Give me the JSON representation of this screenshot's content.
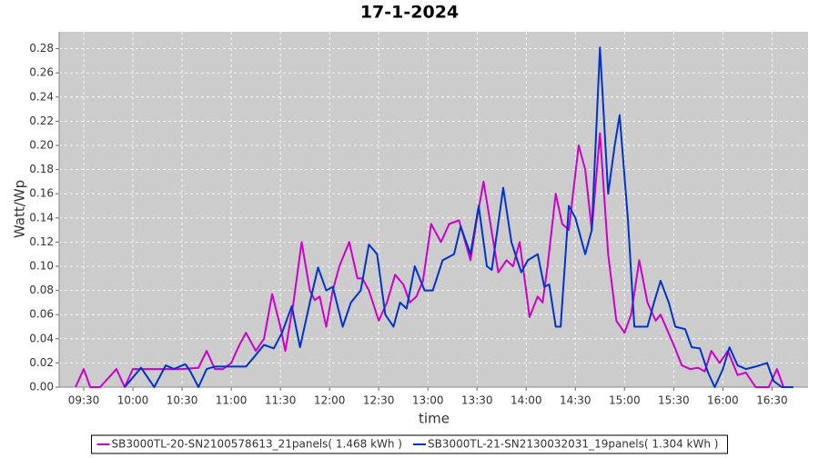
{
  "chart_data": {
    "type": "line",
    "title": "17-1-2024",
    "x_label": "time",
    "y_label": "Watt/Wp",
    "grid": true,
    "legend": "bottom",
    "xlim": [
      "09:15",
      "16:52"
    ],
    "xticks": [
      "09:30",
      "10:00",
      "10:30",
      "11:00",
      "11:30",
      "12:00",
      "12:30",
      "13:00",
      "13:30",
      "14:00",
      "14:30",
      "15:00",
      "15:30",
      "16:00",
      "16:30"
    ],
    "ylim": [
      0,
      0.294
    ],
    "yticks": [
      {
        "value": 0,
        "label": "0.00"
      },
      {
        "value": 0.02,
        "label": "0.02"
      },
      {
        "value": 0.04,
        "label": "0.04"
      },
      {
        "value": 0.06,
        "label": "0.06"
      },
      {
        "value": 0.08,
        "label": "0.08"
      },
      {
        "value": 0.1,
        "label": "0.10"
      },
      {
        "value": 0.12,
        "label": "0.12"
      },
      {
        "value": 0.14,
        "label": "0.14"
      },
      {
        "value": 0.16,
        "label": "0.16"
      },
      {
        "value": 0.18,
        "label": "0.18"
      },
      {
        "value": 0.2,
        "label": "0.20"
      },
      {
        "value": 0.22,
        "label": "0.22"
      },
      {
        "value": 0.24,
        "label": "0.24"
      },
      {
        "value": 0.26,
        "label": "0.26"
      },
      {
        "value": 0.28,
        "label": "0.28"
      }
    ],
    "series": [
      {
        "name": "SB3000TL-20-SN2100578613_21panels( 1.468 kWh )",
        "color": "#cc00cc",
        "x": [
          "09:25",
          "09:30",
          "09:34",
          "09:40",
          "09:50",
          "09:55",
          "10:00",
          "10:05",
          "10:10",
          "10:20",
          "10:30",
          "10:40",
          "10:45",
          "10:50",
          "10:55",
          "11:00",
          "11:05",
          "11:09",
          "11:15",
          "11:20",
          "11:25",
          "11:30",
          "11:33",
          "11:38",
          "11:43",
          "11:48",
          "11:51",
          "11:54",
          "11:58",
          "12:02",
          "12:06",
          "12:12",
          "12:17",
          "12:20",
          "12:24",
          "12:30",
          "12:35",
          "12:40",
          "12:45",
          "12:49",
          "12:53",
          "12:57",
          "13:02",
          "13:08",
          "13:13",
          "13:19",
          "13:26",
          "13:30",
          "13:34",
          "13:40",
          "13:43",
          "13:48",
          "13:52",
          "13:56",
          "13:59",
          "14:02",
          "14:07",
          "14:10",
          "14:13",
          "14:18",
          "14:22",
          "14:26",
          "14:32",
          "14:36",
          "14:40",
          "14:45",
          "14:50",
          "14:55",
          "15:00",
          "15:04",
          "15:09",
          "15:14",
          "15:19",
          "15:22",
          "15:30",
          "15:35",
          "15:40",
          "15:45",
          "15:49",
          "15:53",
          "15:58",
          "16:03",
          "16:09",
          "16:14",
          "16:20",
          "16:28",
          "16:33",
          "16:37"
        ],
        "values": [
          0,
          0.015,
          0,
          0,
          0.015,
          0,
          0.015,
          0.015,
          0.015,
          0.015,
          0.015,
          0.016,
          0.03,
          0.015,
          0.015,
          0.02,
          0.035,
          0.045,
          0.03,
          0.04,
          0.077,
          0.05,
          0.03,
          0.07,
          0.12,
          0.08,
          0.072,
          0.075,
          0.05,
          0.08,
          0.1,
          0.12,
          0.09,
          0.09,
          0.08,
          0.055,
          0.07,
          0.093,
          0.085,
          0.07,
          0.075,
          0.088,
          0.135,
          0.12,
          0.135,
          0.138,
          0.105,
          0.14,
          0.17,
          0.12,
          0.095,
          0.105,
          0.1,
          0.12,
          0.09,
          0.058,
          0.075,
          0.07,
          0.1,
          0.16,
          0.135,
          0.13,
          0.2,
          0.18,
          0.13,
          0.21,
          0.11,
          0.055,
          0.045,
          0.06,
          0.105,
          0.07,
          0.055,
          0.06,
          0.035,
          0.018,
          0.015,
          0.016,
          0.013,
          0.03,
          0.02,
          0.03,
          0.01,
          0.012,
          0,
          0,
          0.015,
          0
        ]
      },
      {
        "name": "SB3000TL-21-SN2130032031_19panels( 1.304 kWh )",
        "color": "#0033cc",
        "x": [
          "09:55",
          "10:05",
          "10:13",
          "10:20",
          "10:25",
          "10:32",
          "10:35",
          "10:40",
          "10:45",
          "10:50",
          "11:00",
          "11:09",
          "11:14",
          "11:20",
          "11:26",
          "11:31",
          "11:37",
          "11:42",
          "11:48",
          "11:53",
          "11:58",
          "12:02",
          "12:08",
          "12:13",
          "12:19",
          "12:24",
          "12:29",
          "12:34",
          "12:39",
          "12:43",
          "12:47",
          "12:52",
          "12:58",
          "13:03",
          "13:09",
          "13:16",
          "13:20",
          "13:26",
          "13:31",
          "13:36",
          "13:39",
          "13:46",
          "13:51",
          "13:57",
          "14:01",
          "14:07",
          "14:11",
          "14:14",
          "14:18",
          "14:21",
          "14:26",
          "14:30",
          "14:36",
          "14:40",
          "14:45",
          "14:50",
          "14:54",
          "14:57",
          "15:02",
          "15:06",
          "15:14",
          "15:18",
          "15:22",
          "15:27",
          "15:31",
          "15:37",
          "15:41",
          "15:46",
          "15:51",
          "15:55",
          "16:00",
          "16:04",
          "16:09",
          "16:14",
          "16:20",
          "16:27",
          "16:31",
          "16:36",
          "16:43"
        ],
        "values": [
          0,
          0.016,
          0,
          0.018,
          0.015,
          0.019,
          0.013,
          0,
          0.015,
          0.017,
          0.017,
          0.017,
          0.025,
          0.035,
          0.032,
          0.045,
          0.067,
          0.033,
          0.07,
          0.099,
          0.08,
          0.083,
          0.05,
          0.07,
          0.08,
          0.118,
          0.11,
          0.06,
          0.05,
          0.07,
          0.065,
          0.1,
          0.08,
          0.08,
          0.105,
          0.11,
          0.133,
          0.11,
          0.15,
          0.1,
          0.097,
          0.165,
          0.12,
          0.095,
          0.105,
          0.11,
          0.083,
          0.085,
          0.05,
          0.05,
          0.15,
          0.14,
          0.11,
          0.13,
          0.281,
          0.16,
          0.2,
          0.225,
          0.14,
          0.05,
          0.05,
          0.07,
          0.088,
          0.07,
          0.05,
          0.048,
          0.033,
          0.032,
          0.012,
          0,
          0.015,
          0.033,
          0.018,
          0.015,
          0.017,
          0.02,
          0.005,
          0,
          0
        ]
      }
    ]
  }
}
